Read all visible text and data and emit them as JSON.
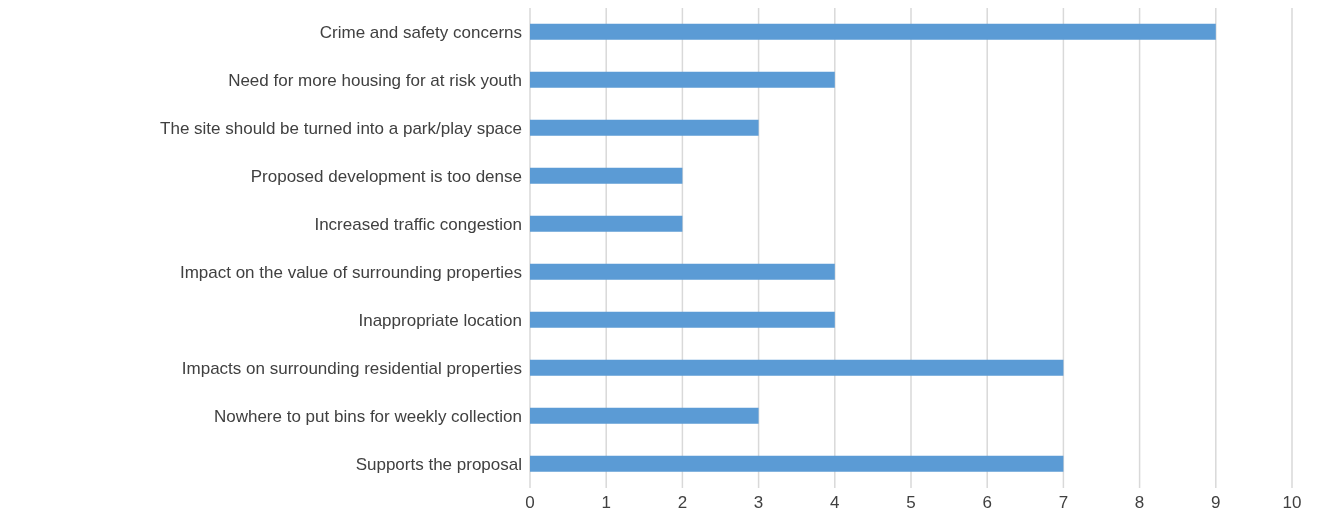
{
  "chart_data": {
    "type": "bar",
    "orientation": "horizontal",
    "categories": [
      "Crime and safety concerns",
      "Need for more housing for at risk youth",
      "The site should be turned into a park/play space",
      "Proposed development is too dense",
      "Increased traffic congestion",
      "Impact on the value of surrounding properties",
      "Inappropriate location",
      "Impacts on surrounding residential properties",
      "Nowhere to put bins for weekly collection",
      "Supports the proposal"
    ],
    "values": [
      9,
      4,
      3,
      2,
      2,
      4,
      4,
      7,
      3,
      7
    ],
    "color": "#5b9bd5",
    "xlim": [
      0,
      10
    ],
    "xticks": [
      0,
      1,
      2,
      3,
      4,
      5,
      6,
      7,
      8,
      9,
      10
    ],
    "grid": "x"
  }
}
